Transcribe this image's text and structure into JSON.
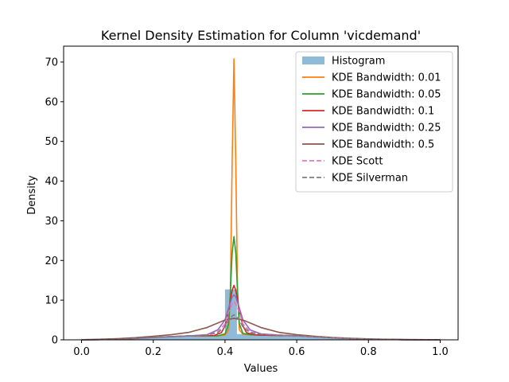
{
  "chart_data": {
    "type": "area",
    "title": "Kernel Density Estimation for Column 'vicdemand'",
    "xlabel": "Values",
    "ylabel": "Density",
    "xlim": [
      -0.05,
      1.05
    ],
    "ylim": [
      0,
      74
    ],
    "x_ticks": [
      0.0,
      0.2,
      0.4,
      0.6,
      0.8,
      1.0
    ],
    "x_tick_labels": [
      "0.0",
      "0.2",
      "0.4",
      "0.6",
      "0.8",
      "1.0"
    ],
    "y_ticks": [
      0,
      10,
      20,
      30,
      40,
      50,
      60,
      70
    ],
    "y_tick_labels": [
      "0",
      "10",
      "20",
      "30",
      "40",
      "50",
      "60",
      "70"
    ],
    "grid": false,
    "legend_position": "top-right",
    "histogram": {
      "name": "Histogram",
      "color": "#1f77b4",
      "alpha": 0.5,
      "bins": [
        {
          "x0": 0.0,
          "x1": 0.0333,
          "height": 0.02
        },
        {
          "x0": 0.0333,
          "x1": 0.0667,
          "height": 0.05
        },
        {
          "x0": 0.0667,
          "x1": 0.1,
          "height": 0.1
        },
        {
          "x0": 0.1,
          "x1": 0.1333,
          "height": 0.2
        },
        {
          "x0": 0.1333,
          "x1": 0.1667,
          "height": 0.35
        },
        {
          "x0": 0.1667,
          "x1": 0.2,
          "height": 0.55
        },
        {
          "x0": 0.2,
          "x1": 0.2333,
          "height": 0.8
        },
        {
          "x0": 0.2333,
          "x1": 0.2667,
          "height": 0.95
        },
        {
          "x0": 0.2667,
          "x1": 0.3,
          "height": 1.05
        },
        {
          "x0": 0.3,
          "x1": 0.3333,
          "height": 1.05
        },
        {
          "x0": 0.3333,
          "x1": 0.3667,
          "height": 1.1
        },
        {
          "x0": 0.3667,
          "x1": 0.4,
          "height": 1.15
        },
        {
          "x0": 0.4,
          "x1": 0.4333,
          "height": 12.7
        },
        {
          "x0": 0.4333,
          "x1": 0.4667,
          "height": 1.45
        },
        {
          "x0": 0.4667,
          "x1": 0.5,
          "height": 1.3
        },
        {
          "x0": 0.5,
          "x1": 0.5333,
          "height": 1.2
        },
        {
          "x0": 0.5333,
          "x1": 0.5667,
          "height": 1.1
        },
        {
          "x0": 0.5667,
          "x1": 0.6,
          "height": 1.0
        },
        {
          "x0": 0.6,
          "x1": 0.6333,
          "height": 0.85
        },
        {
          "x0": 0.6333,
          "x1": 0.6667,
          "height": 0.7
        },
        {
          "x0": 0.6667,
          "x1": 0.7,
          "height": 0.55
        },
        {
          "x0": 0.7,
          "x1": 0.7333,
          "height": 0.4
        },
        {
          "x0": 0.7333,
          "x1": 0.7667,
          "height": 0.3
        },
        {
          "x0": 0.7667,
          "x1": 0.8,
          "height": 0.2
        },
        {
          "x0": 0.8,
          "x1": 0.8333,
          "height": 0.12
        },
        {
          "x0": 0.8333,
          "x1": 0.8667,
          "height": 0.08
        },
        {
          "x0": 0.8667,
          "x1": 0.9,
          "height": 0.05
        },
        {
          "x0": 0.9,
          "x1": 0.9333,
          "height": 0.03
        },
        {
          "x0": 0.9333,
          "x1": 0.9667,
          "height": 0.02
        },
        {
          "x0": 0.9667,
          "x1": 1.0,
          "height": 0.01
        }
      ]
    },
    "series": [
      {
        "name": "KDE Bandwidth: 0.01",
        "color": "#ff7f0e",
        "dashed": false,
        "x": [
          0.0,
          0.1,
          0.2,
          0.3,
          0.38,
          0.4,
          0.41,
          0.415,
          0.42,
          0.425,
          0.43,
          0.435,
          0.44,
          0.45,
          0.47,
          0.5,
          0.6,
          0.7,
          0.8,
          0.9,
          1.0
        ],
        "y": [
          0.0,
          0.1,
          0.6,
          1.0,
          1.0,
          1.2,
          2.5,
          12.0,
          45.0,
          70.8,
          45.0,
          12.0,
          2.5,
          1.4,
          1.3,
          1.2,
          1.0,
          0.5,
          0.15,
          0.03,
          0.0
        ]
      },
      {
        "name": "KDE Bandwidth: 0.05",
        "color": "#2ca02c",
        "dashed": false,
        "x": [
          0.0,
          0.1,
          0.2,
          0.3,
          0.38,
          0.4,
          0.41,
          0.415,
          0.42,
          0.425,
          0.43,
          0.435,
          0.44,
          0.45,
          0.47,
          0.5,
          0.6,
          0.7,
          0.8,
          0.9,
          1.0
        ],
        "y": [
          0.0,
          0.1,
          0.6,
          1.0,
          1.0,
          1.5,
          4.0,
          12.0,
          22.0,
          26.0,
          22.0,
          12.0,
          4.0,
          1.6,
          1.3,
          1.2,
          1.0,
          0.5,
          0.15,
          0.03,
          0.0
        ]
      },
      {
        "name": "KDE Bandwidth: 0.1",
        "color": "#d62728",
        "dashed": false,
        "x": [
          0.0,
          0.1,
          0.2,
          0.3,
          0.37,
          0.39,
          0.4,
          0.41,
          0.42,
          0.425,
          0.43,
          0.44,
          0.45,
          0.46,
          0.48,
          0.5,
          0.6,
          0.7,
          0.8,
          0.9,
          1.0
        ],
        "y": [
          0.0,
          0.1,
          0.6,
          1.0,
          1.1,
          1.8,
          3.5,
          7.5,
          12.5,
          13.7,
          12.5,
          7.5,
          3.5,
          1.8,
          1.3,
          1.2,
          1.0,
          0.5,
          0.15,
          0.03,
          0.0
        ]
      },
      {
        "name": "KDE Bandwidth: 0.25",
        "color": "#9467bd",
        "dashed": false,
        "x": [
          0.0,
          0.1,
          0.2,
          0.3,
          0.35,
          0.38,
          0.4,
          0.41,
          0.42,
          0.425,
          0.43,
          0.44,
          0.45,
          0.47,
          0.5,
          0.55,
          0.6,
          0.7,
          0.8,
          0.9,
          1.0
        ],
        "y": [
          0.0,
          0.1,
          0.6,
          1.0,
          1.3,
          2.5,
          5.0,
          8.0,
          10.8,
          11.3,
          10.8,
          8.0,
          5.0,
          2.5,
          1.5,
          1.2,
          1.0,
          0.5,
          0.15,
          0.03,
          0.0
        ]
      },
      {
        "name": "KDE Bandwidth: 0.5",
        "color": "#8c564b",
        "dashed": false,
        "x": [
          0.0,
          0.05,
          0.1,
          0.15,
          0.2,
          0.25,
          0.3,
          0.35,
          0.4,
          0.425,
          0.45,
          0.5,
          0.55,
          0.6,
          0.65,
          0.7,
          0.75,
          0.8,
          0.85,
          0.9,
          1.0
        ],
        "y": [
          0.05,
          0.15,
          0.3,
          0.55,
          0.9,
          1.3,
          1.9,
          3.1,
          5.0,
          5.4,
          5.0,
          3.1,
          1.9,
          1.3,
          0.9,
          0.6,
          0.4,
          0.25,
          0.15,
          0.08,
          0.02
        ]
      },
      {
        "name": "KDE Scott",
        "color": "#e377c2",
        "dashed": true,
        "x": [
          0.0,
          0.1,
          0.2,
          0.3,
          0.35,
          0.38,
          0.4,
          0.41,
          0.42,
          0.425,
          0.43,
          0.44,
          0.45,
          0.47,
          0.5,
          0.55,
          0.6,
          0.7,
          0.8,
          0.9,
          1.0
        ],
        "y": [
          0.0,
          0.1,
          0.6,
          1.0,
          1.2,
          2.0,
          4.0,
          7.0,
          9.0,
          9.6,
          9.0,
          7.0,
          4.0,
          2.0,
          1.4,
          1.2,
          1.0,
          0.5,
          0.15,
          0.03,
          0.0
        ]
      },
      {
        "name": "KDE Silverman",
        "color": "#7f7f7f",
        "dashed": true,
        "x": [
          0.0,
          0.1,
          0.2,
          0.3,
          0.35,
          0.38,
          0.4,
          0.41,
          0.42,
          0.425,
          0.43,
          0.44,
          0.45,
          0.47,
          0.5,
          0.55,
          0.6,
          0.7,
          0.8,
          0.9,
          1.0
        ],
        "y": [
          0.0,
          0.1,
          0.6,
          1.0,
          1.2,
          1.8,
          3.2,
          5.0,
          6.0,
          6.3,
          6.0,
          5.0,
          3.2,
          1.8,
          1.4,
          1.2,
          1.0,
          0.5,
          0.15,
          0.03,
          0.0
        ]
      }
    ]
  }
}
